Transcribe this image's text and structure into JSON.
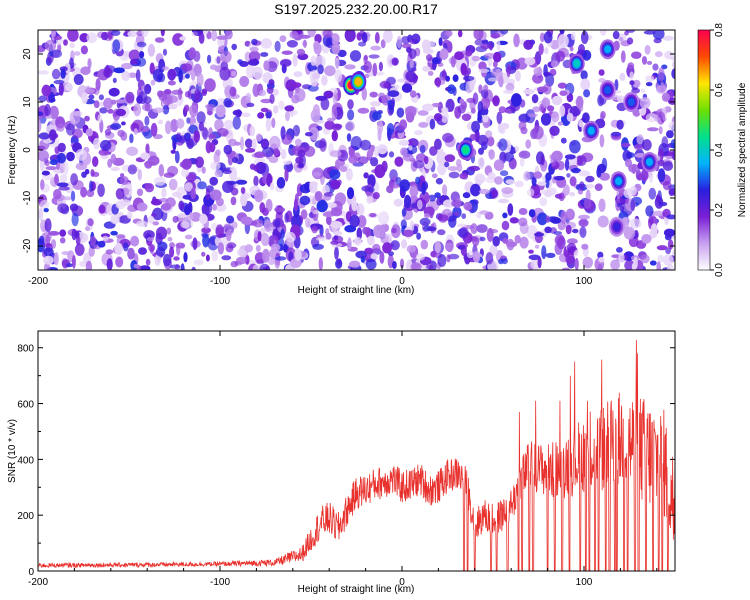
{
  "chart_data": [
    {
      "type": "heatmap",
      "title": "S197.2025.232.20.00.R17",
      "xlabel": "Height of straight line (km)",
      "ylabel": "Frequency (Hz)",
      "xlim": [
        -200,
        150
      ],
      "ylim": [
        -25,
        25
      ],
      "x_ticks": [
        -200,
        -100,
        0,
        100
      ],
      "y_ticks": [
        -20,
        -10,
        0,
        10,
        20
      ],
      "colorbar": {
        "label": "Normalized spectral amplitude",
        "range": [
          0.0,
          0.8
        ],
        "ticks": [
          0.0,
          0.2,
          0.4,
          0.6,
          0.8
        ],
        "tick_labels": [
          "0.0",
          "0.2",
          "0.4",
          "0.6",
          "0.8"
        ],
        "colors": [
          "#ffffff",
          "#c8a0f0",
          "#7a1fd6",
          "#2a1fe0",
          "#00b4ff",
          "#00e08c",
          "#6ee000",
          "#ffe600",
          "#ff4a00",
          "#ff0050"
        ]
      },
      "empty_bands": [
        [
          -33,
          -29
        ],
        [
          -29,
          -30
        ],
        [
          103,
          108
        ],
        [
          111,
          117
        ]
      ],
      "hotspots": [
        {
          "x": -28,
          "y": 13.5,
          "value": 0.75
        },
        {
          "x": -24,
          "y": 14.2,
          "value": 0.6
        },
        {
          "x": 35,
          "y": 0,
          "value": 0.4
        },
        {
          "x": 96,
          "y": 18,
          "value": 0.35
        },
        {
          "x": 104,
          "y": 4,
          "value": 0.3
        },
        {
          "x": 113,
          "y": 21,
          "value": 0.3
        },
        {
          "x": 113,
          "y": 12.5,
          "value": 0.25
        },
        {
          "x": 119,
          "y": -6.5,
          "value": 0.3
        },
        {
          "x": 126,
          "y": 10,
          "value": 0.25
        },
        {
          "x": 136,
          "y": -2.5,
          "value": 0.3
        },
        {
          "x": 118,
          "y": -16,
          "value": 0.2
        }
      ]
    },
    {
      "type": "line",
      "xlabel": "Height of straight line (km)",
      "ylabel": "SNR (10 * v/v)",
      "xlim": [
        -200,
        150
      ],
      "ylim": [
        0,
        860
      ],
      "x_ticks": [
        -200,
        -100,
        0,
        100
      ],
      "y_ticks": [
        0,
        200,
        400,
        600,
        800
      ],
      "color": "#e8302c",
      "x": [
        -200,
        -150,
        -100,
        -70,
        -55,
        -45,
        -40,
        -35,
        -30,
        -25,
        -20,
        -15,
        -10,
        -5,
        0,
        5,
        10,
        15,
        20,
        25,
        30,
        34,
        36,
        40,
        45,
        50,
        55,
        60,
        65,
        70,
        75,
        80,
        85,
        90,
        95,
        100,
        105,
        110,
        115,
        120,
        125,
        130,
        135,
        140,
        145,
        150
      ],
      "y": [
        20,
        22,
        25,
        30,
        60,
        170,
        190,
        150,
        220,
        280,
        290,
        310,
        320,
        330,
        300,
        310,
        330,
        290,
        300,
        340,
        350,
        330,
        300,
        160,
        200,
        180,
        200,
        230,
        320,
        380,
        370,
        360,
        360,
        380,
        400,
        420,
        430,
        440,
        450,
        470,
        460,
        440,
        420,
        400,
        380,
        200
      ],
      "noise_amplitude": [
        8,
        8,
        8,
        12,
        30,
        60,
        60,
        60,
        60,
        60,
        60,
        60,
        60,
        60,
        60,
        60,
        60,
        60,
        60,
        60,
        60,
        60,
        60,
        60,
        60,
        60,
        60,
        60,
        80,
        90,
        90,
        100,
        110,
        120,
        130,
        140,
        150,
        160,
        170,
        180,
        190,
        200,
        200,
        200,
        200,
        200
      ],
      "dropouts_x": [
        34,
        36,
        40,
        49,
        52,
        58,
        64,
        66,
        70,
        72,
        80,
        84,
        88,
        92,
        98,
        101,
        103,
        106,
        108,
        112,
        114,
        117,
        118,
        122,
        124,
        128,
        130,
        134,
        138,
        141,
        143,
        146
      ]
    }
  ]
}
